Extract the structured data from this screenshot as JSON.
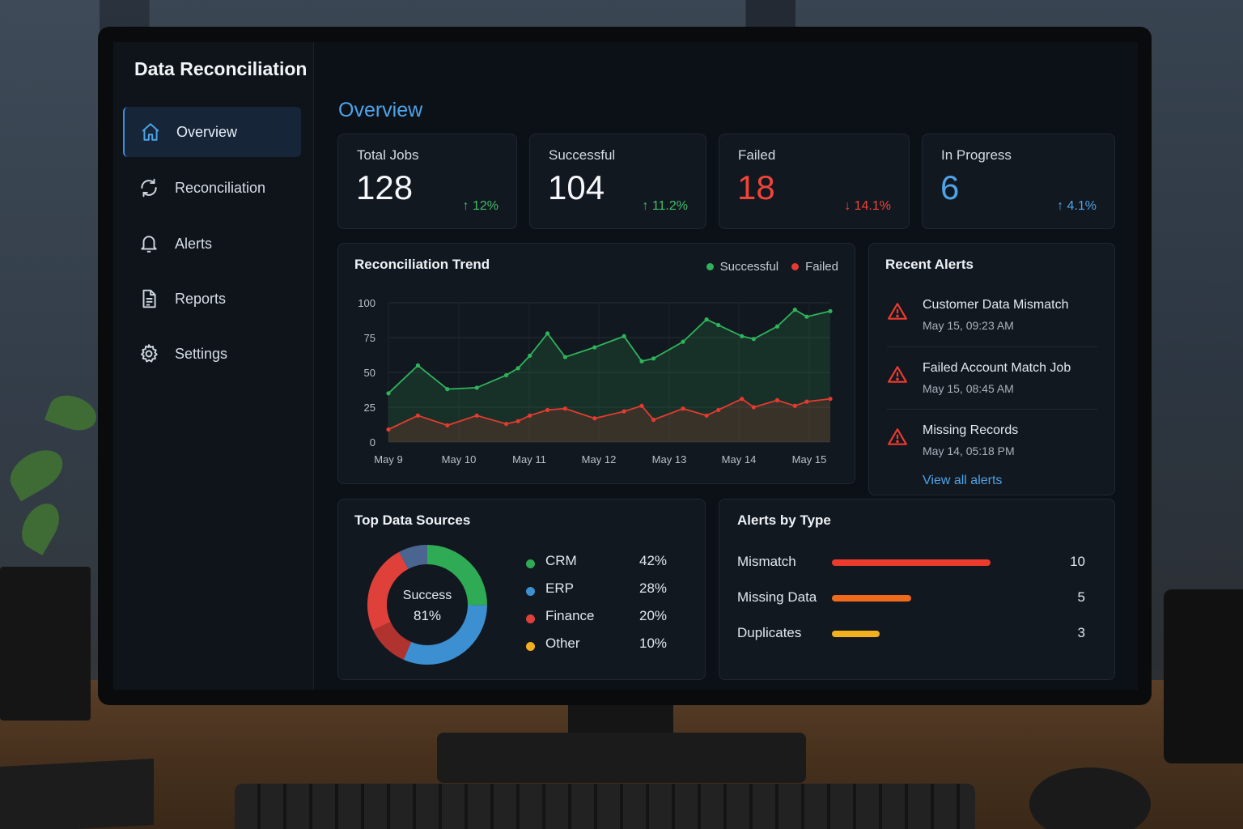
{
  "app": {
    "title": "Data Reconciliation"
  },
  "sidebar": {
    "items": [
      {
        "label": "Overview",
        "icon": "home-icon",
        "active": true
      },
      {
        "label": "Reconciliation",
        "icon": "refresh-icon",
        "active": false
      },
      {
        "label": "Alerts",
        "icon": "bell-icon",
        "active": false
      },
      {
        "label": "Reports",
        "icon": "document-icon",
        "active": false
      },
      {
        "label": "Settings",
        "icon": "gear-icon",
        "active": false
      }
    ]
  },
  "main": {
    "title": "Overview",
    "stats": [
      {
        "label": "Total Jobs",
        "value": "128",
        "delta": "↑ 12%",
        "value_color": "#f5f7fa",
        "delta_color": "#3fbf6a"
      },
      {
        "label": "Successful",
        "value": "104",
        "delta": "↑ 11.2%",
        "value_color": "#f5f7fa",
        "delta_color": "#3fbf6a"
      },
      {
        "label": "Failed",
        "value": "18",
        "delta": "↓ 14.1%",
        "value_color": "#f0443a",
        "delta_color": "#f0443a"
      },
      {
        "label": "In Progress",
        "value": "6",
        "delta": "↑ 4.1%",
        "value_color": "#4ea3e8",
        "delta_color": "#4ea3e8"
      }
    ],
    "trend": {
      "title": "Reconciliation Trend",
      "legend": [
        {
          "name": "Successful",
          "color": "#2fb35a"
        },
        {
          "name": "Failed",
          "color": "#e53a2f"
        }
      ]
    },
    "recent_alerts": {
      "title": "Recent Alerts",
      "items": [
        {
          "title": "Customer Data Mismatch",
          "time": "May 15, 09:23 AM"
        },
        {
          "title": "Failed Account Match Job",
          "time": "May 15, 08:45 AM"
        },
        {
          "title": "Missing Records",
          "time": "May 14, 05:18 PM"
        }
      ],
      "view_all": "View all alerts"
    },
    "sources": {
      "title": "Top Data Sources",
      "center_label": "Success",
      "center_value": "81%",
      "items": [
        {
          "name": "CRM",
          "pct": "42%",
          "color": "#2faa55"
        },
        {
          "name": "ERP",
          "pct": "28%",
          "color": "#3c8fd0"
        },
        {
          "name": "Finance",
          "pct": "20%",
          "color": "#e0403a"
        },
        {
          "name": "Other",
          "pct": "10%",
          "color": "#f2b01e"
        }
      ]
    },
    "alerts_by_type": {
      "title": "Alerts by Type",
      "items": [
        {
          "name": "Mismatch",
          "count": "10",
          "value": 10,
          "color": "#ec3b2c"
        },
        {
          "name": "Missing Data",
          "count": "5",
          "value": 5,
          "color": "#f06a1c"
        },
        {
          "name": "Duplicates",
          "count": "3",
          "value": 3,
          "color": "#f2b01e"
        }
      ]
    }
  },
  "chart_data": {
    "type": "line",
    "title": "Reconciliation Trend",
    "x": [
      0,
      0.5,
      1,
      1.5,
      2,
      2.2,
      2.4,
      2.7,
      3,
      3.5,
      4,
      4.3,
      4.5,
      5,
      5.4,
      5.6,
      6,
      6.2,
      6.6,
      6.9,
      7.1,
      7.5
    ],
    "tick_labels": [
      "May 9",
      "May 10",
      "May 11",
      "May 12",
      "May 13",
      "May 14",
      "May 15"
    ],
    "series": [
      {
        "name": "Successful",
        "values": [
          35,
          55,
          38,
          39,
          48,
          53,
          62,
          78,
          61,
          68,
          76,
          58,
          60,
          72,
          88,
          84,
          76,
          74,
          83,
          95,
          90,
          94
        ]
      },
      {
        "name": "Failed",
        "values": [
          9,
          19,
          12,
          19,
          13,
          15,
          19,
          23,
          24,
          17,
          22,
          26,
          16,
          24,
          19,
          23,
          31,
          25,
          30,
          26,
          29,
          31
        ]
      }
    ],
    "ylim": [
      0,
      100
    ],
    "yticks": [
      0,
      25,
      50,
      75,
      100
    ],
    "grid": true,
    "legend": "top-right"
  }
}
